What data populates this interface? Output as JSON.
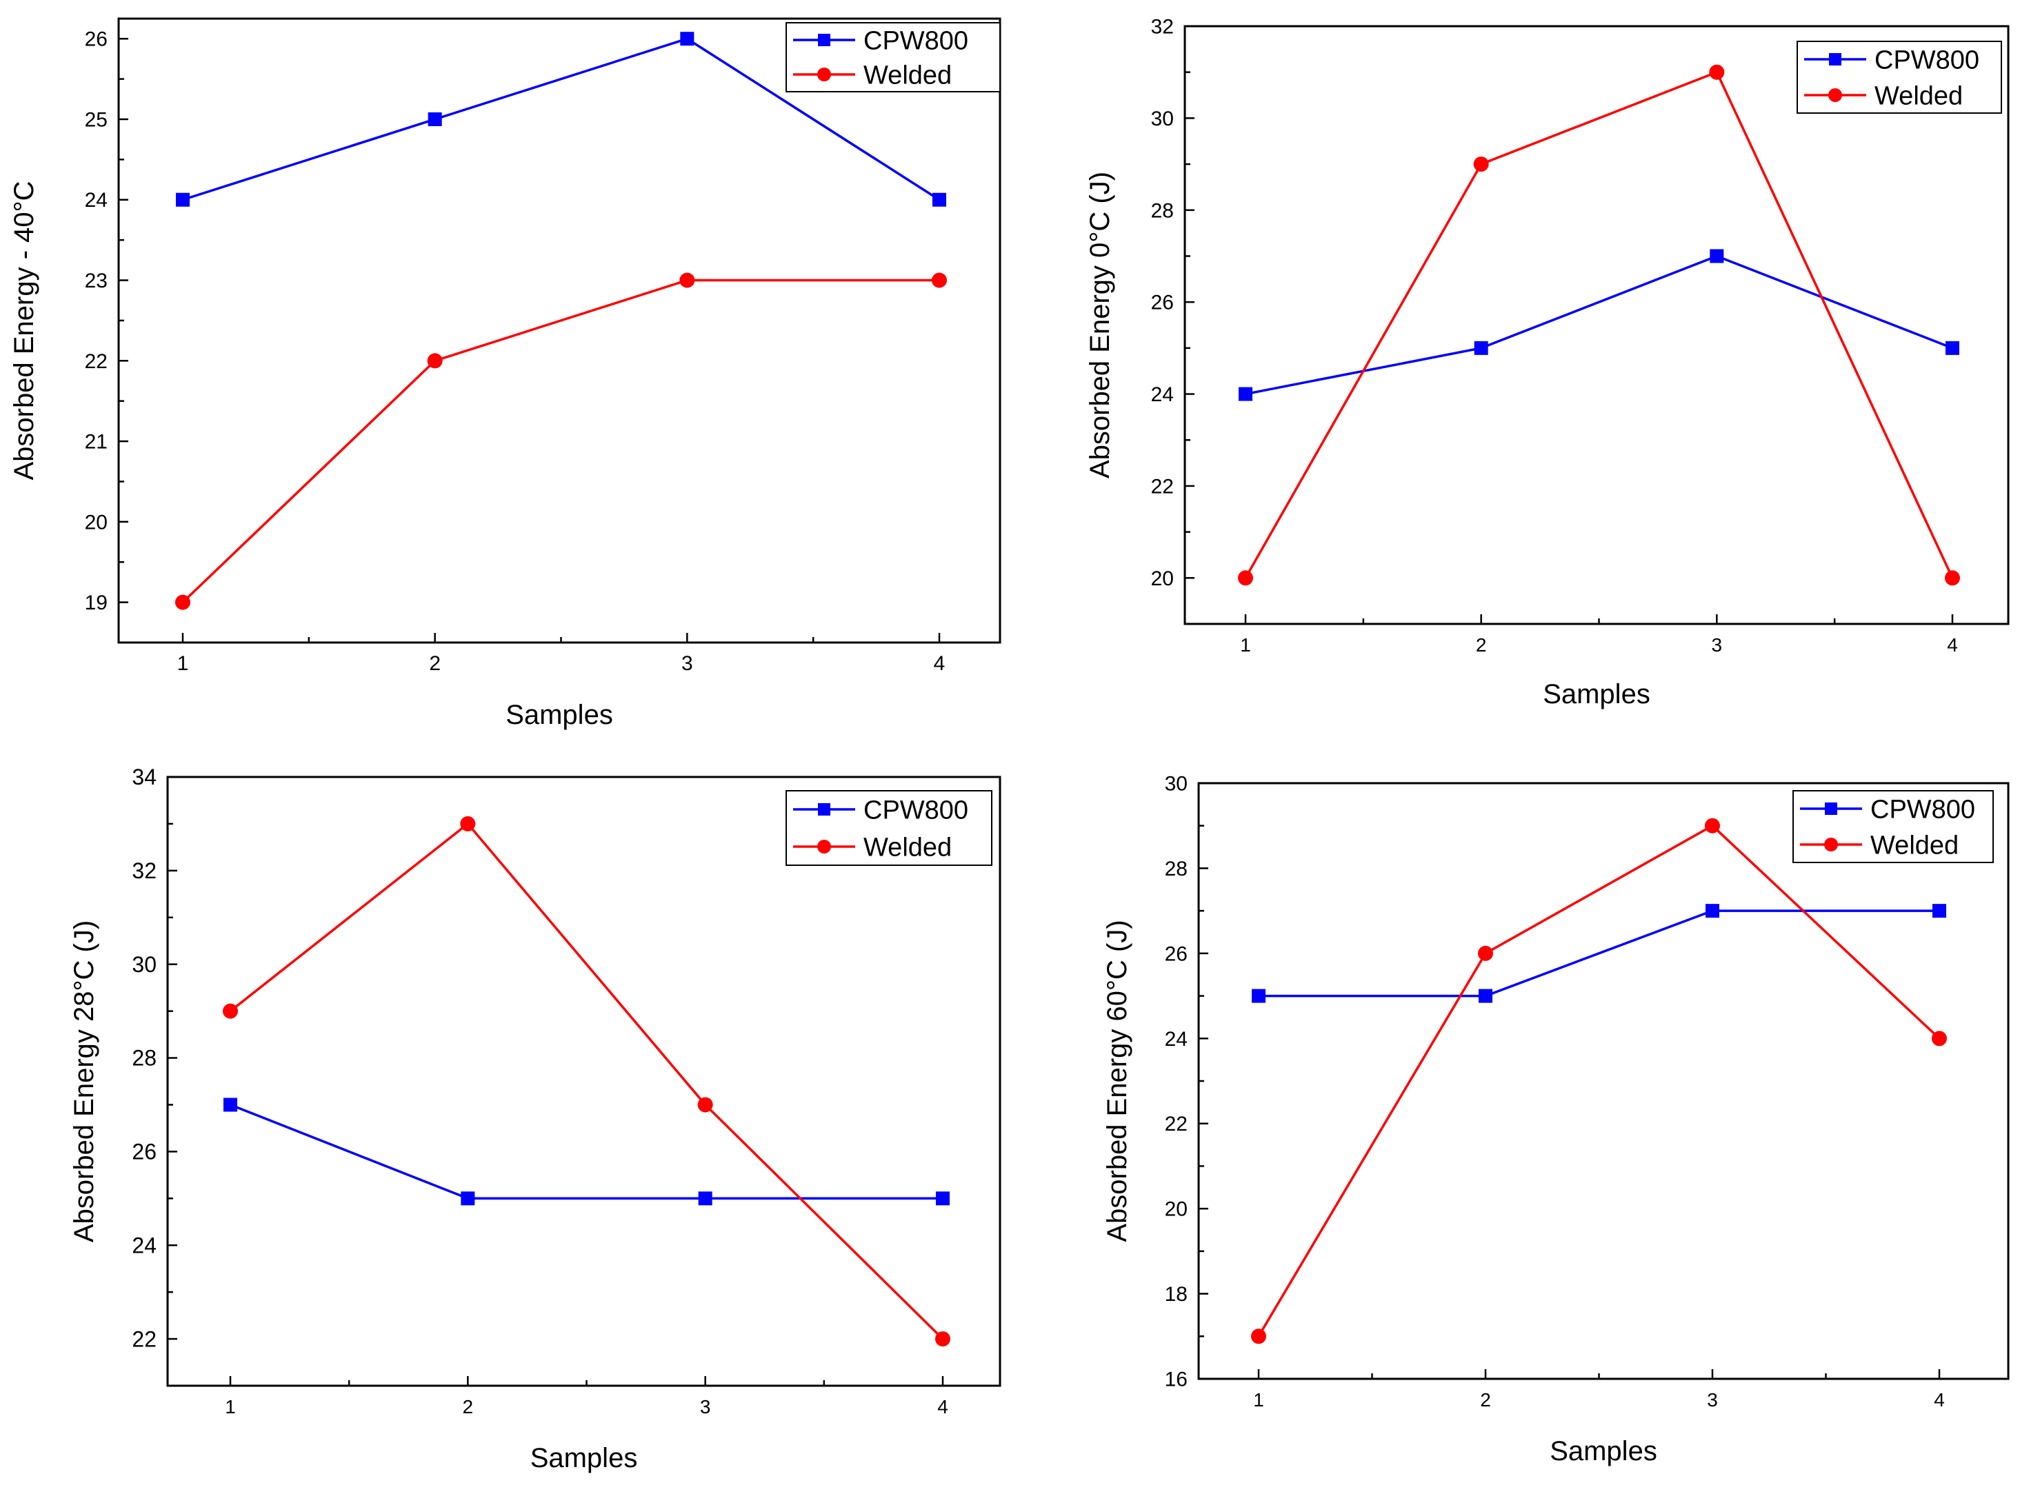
{
  "chart_data": [
    {
      "type": "line",
      "xlabel": "Samples",
      "ylabel": "Absorbed Energy - 40°C",
      "categories": [
        "1",
        "2",
        "3",
        "4"
      ],
      "ylim": [
        18.5,
        26.25
      ],
      "yticks": [
        "19",
        "20",
        "21",
        "22",
        "23",
        "24",
        "25",
        "26"
      ],
      "legend_position": "top-right",
      "grid": false,
      "series": [
        {
          "name": "CPW800",
          "values": [
            24,
            25,
            26,
            24
          ],
          "color": "#0000ff",
          "marker": "square"
        },
        {
          "name": "Welded",
          "values": [
            19,
            22,
            23,
            23
          ],
          "color": "#ff0000",
          "marker": "circle"
        }
      ]
    },
    {
      "type": "line",
      "xlabel": "Samples",
      "ylabel": "Absorbed Energy 0°C (J)",
      "categories": [
        "1",
        "2",
        "3",
        "4"
      ],
      "ylim": [
        19,
        32
      ],
      "yticks": [
        "20",
        "22",
        "24",
        "26",
        "28",
        "30",
        "32"
      ],
      "legend_position": "top-right",
      "grid": false,
      "series": [
        {
          "name": "CPW800",
          "values": [
            24,
            25,
            27,
            25
          ],
          "color": "#0000ff",
          "marker": "square"
        },
        {
          "name": "Welded",
          "values": [
            20,
            29,
            31,
            20
          ],
          "color": "#ff0000",
          "marker": "circle"
        }
      ]
    },
    {
      "type": "line",
      "xlabel": "Samples",
      "ylabel": "Absorbed Energy 28°C (J)",
      "categories": [
        "1",
        "2",
        "3",
        "4"
      ],
      "ylim": [
        21,
        34
      ],
      "yticks": [
        "22",
        "24",
        "26",
        "28",
        "30",
        "32",
        "34"
      ],
      "legend_position": "top-right",
      "grid": false,
      "series": [
        {
          "name": "CPW800",
          "values": [
            27,
            25,
            25,
            25
          ],
          "color": "#0000ff",
          "marker": "square"
        },
        {
          "name": "Welded",
          "values": [
            29,
            33,
            27,
            22
          ],
          "color": "#ff0000",
          "marker": "circle"
        }
      ]
    },
    {
      "type": "line",
      "xlabel": "Samples",
      "ylabel": "Absorbed Energy 60°C (J)",
      "categories": [
        "1",
        "2",
        "3",
        "4"
      ],
      "ylim": [
        16,
        30
      ],
      "yticks": [
        "16",
        "18",
        "20",
        "22",
        "24",
        "26",
        "28",
        "30"
      ],
      "legend_position": "top-right",
      "grid": false,
      "series": [
        {
          "name": "CPW800",
          "values": [
            25,
            25,
            27,
            27
          ],
          "color": "#0000ff",
          "marker": "square"
        },
        {
          "name": "Welded",
          "values": [
            17,
            26,
            29,
            24
          ],
          "color": "#ff0000",
          "marker": "circle"
        }
      ]
    }
  ]
}
